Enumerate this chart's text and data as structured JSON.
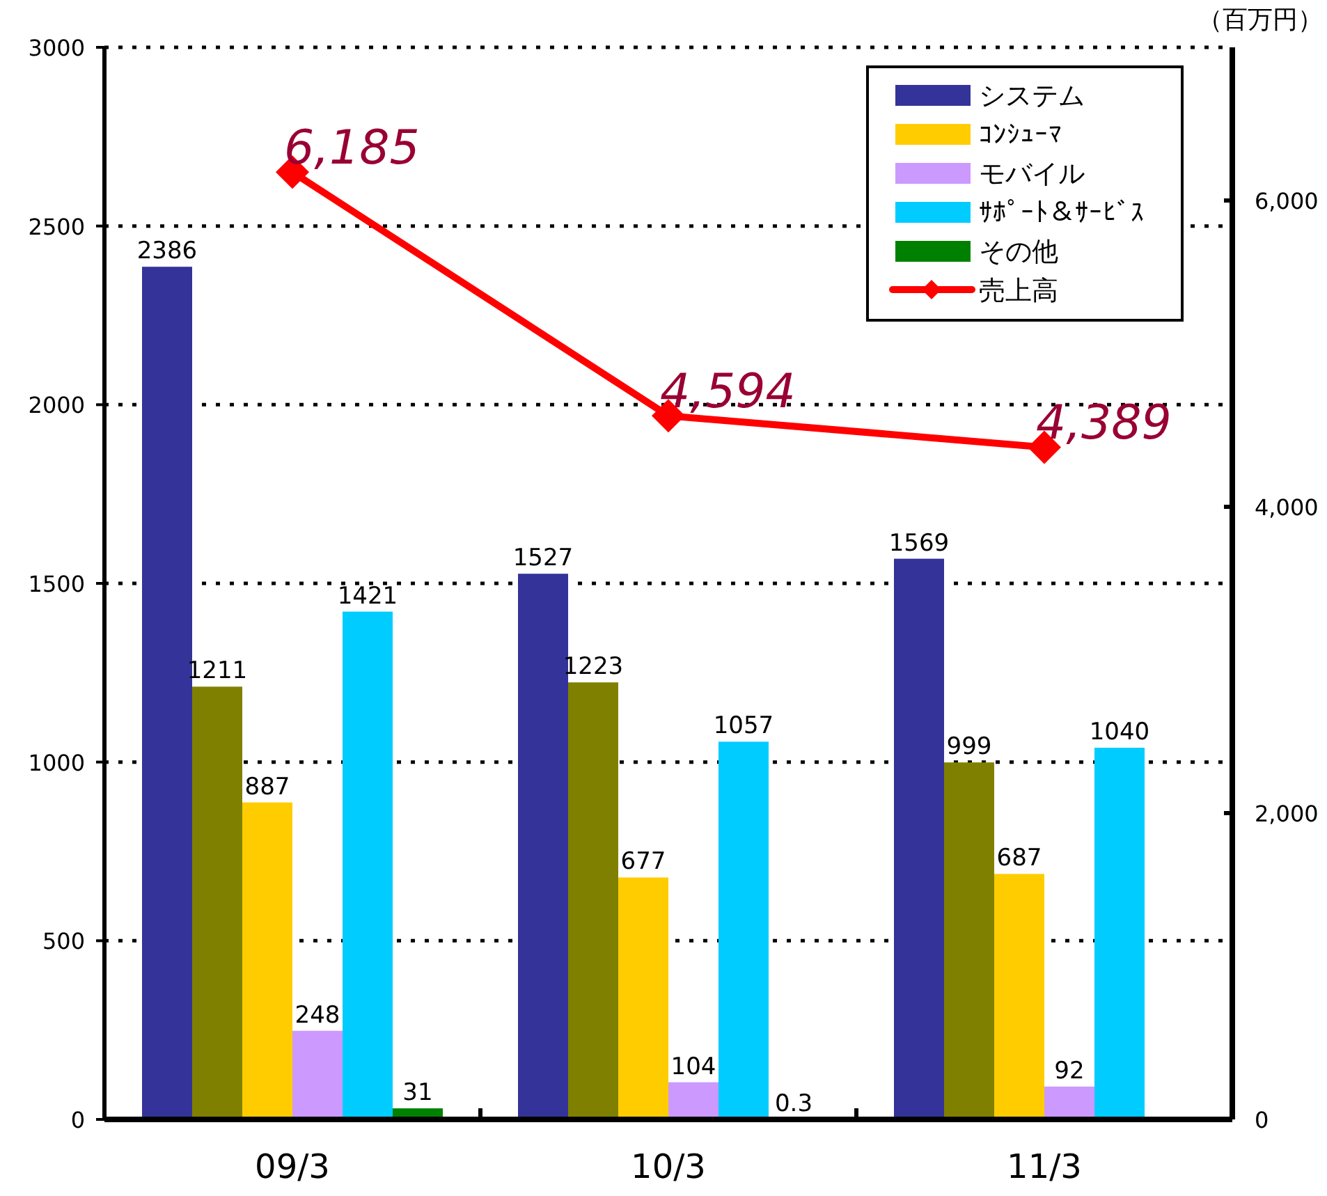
{
  "chart_data": {
    "type": "bar",
    "categories": [
      "09/3",
      "10/3",
      "11/3"
    ],
    "y2label": "（百万円）",
    "ylim": [
      0,
      3000
    ],
    "yticks": [
      0,
      500,
      1000,
      1500,
      2000,
      2500,
      3000
    ],
    "y2lim": [
      0,
      7000
    ],
    "y2ticks": [
      0,
      {
        "value": 2000,
        "label": "2,000"
      },
      {
        "value": 4000,
        "label": "4,000"
      },
      {
        "value": 6000,
        "label": "6,000"
      }
    ],
    "grid": "y",
    "legend": "top right",
    "series": [
      {
        "name": "システム",
        "color": "#333399",
        "values": [
          2386,
          1527,
          1569
        ],
        "value_labels": [
          "2386",
          "1527",
          "1569"
        ]
      },
      {
        "color": "#808000",
        "values": [
          1211,
          1223,
          999
        ],
        "value_labels": [
          "1211",
          "1223",
          "999"
        ]
      },
      {
        "name": "ｺﾝｼｭｰﾏ",
        "color": "#ffcc00",
        "values": [
          887,
          677,
          687
        ],
        "value_labels": [
          "887",
          "677",
          "687"
        ]
      },
      {
        "name": "モバイル",
        "color": "#cc99ff",
        "values": [
          248,
          104,
          92
        ],
        "value_labels": [
          "248",
          "104",
          "92"
        ]
      },
      {
        "name": "ｻﾎﾟｰﾄ＆ｻｰﾋﾞｽ",
        "color": "#00ccff",
        "values": [
          1421,
          1057,
          1040
        ],
        "value_labels": [
          "1421",
          "1057",
          "1040"
        ]
      },
      {
        "name": "その他",
        "color": "#008000",
        "values": [
          31,
          0.3,
          null
        ],
        "value_labels": [
          "31",
          "0.3",
          null
        ]
      },
      {
        "name": "売上高",
        "type": "line",
        "axis": "y2",
        "color": "#ff0000",
        "marker": "diamond",
        "values": [
          6185,
          4594,
          4389
        ],
        "value_labels": [
          "6,185",
          "4,594",
          "4,389"
        ]
      }
    ]
  }
}
